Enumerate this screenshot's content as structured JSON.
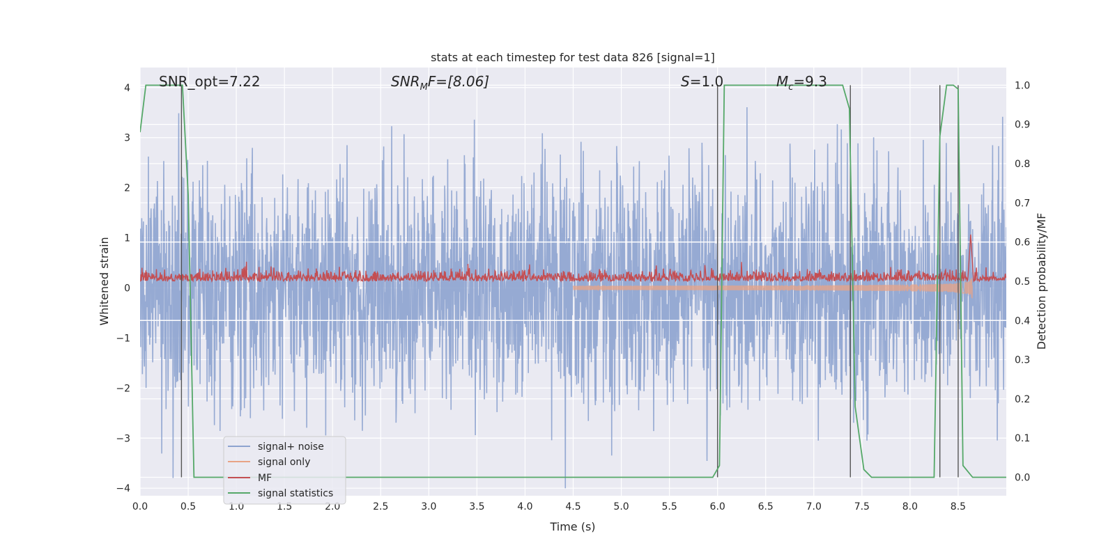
{
  "chart_data": {
    "type": "line",
    "title": "stats at each timestep for test data 826 [signal=1]",
    "xlabel": "Time (s)",
    "ylabel_left": "Whitened strain",
    "ylabel_right": "Detection probability/MF",
    "xlim": [
      0.0,
      9.0
    ],
    "ylim_left": [
      -4.15,
      4.4
    ],
    "ylim_right": [
      -0.047,
      1.045
    ],
    "xticks": [
      "0.0",
      "0.5",
      "1.0",
      "1.5",
      "2.0",
      "2.5",
      "3.0",
      "3.5",
      "4.0",
      "4.5",
      "5.0",
      "5.5",
      "6.0",
      "6.5",
      "7.0",
      "7.5",
      "8.0",
      "8.5"
    ],
    "yticks_left": [
      "−4",
      "−3",
      "−2",
      "−1",
      "0",
      "1",
      "2",
      "3",
      "4"
    ],
    "yticks_right": [
      "0.0",
      "0.1",
      "0.2",
      "0.3",
      "0.4",
      "0.5",
      "0.6",
      "0.7",
      "0.8",
      "0.9",
      "1.0"
    ],
    "grid": true,
    "legend_position": "lower-left",
    "annotations": {
      "snr_opt": "SNR_opt=7.22",
      "snr_mf_base": "SNR",
      "snr_mf_sub": "M",
      "snr_mf_rest": "F=[8.06]",
      "s_name": "S",
      "s_value": "=1.0",
      "mc_name": "M",
      "mc_sub": "c",
      "mc_value": "=9.3"
    },
    "series": [
      {
        "name": "signal+ noise",
        "color": "#8da3cf",
        "kind": "noise",
        "sigma": 1.0,
        "max_abs": 4.0
      },
      {
        "name": "signal only",
        "color": "#e8a385",
        "kind": "chirp",
        "t_merger": 8.65,
        "peak_amplitude": 0.9
      },
      {
        "name": "MF",
        "color": "#c44e52",
        "kind": "mf",
        "baseline": 0.5,
        "peak_time": 8.63,
        "peak_value": 0.62
      },
      {
        "name": "signal statistics",
        "color": "#55a868",
        "kind": "line",
        "x": [
          0.0,
          0.06,
          0.42,
          0.44,
          0.5,
          0.56,
          5.95,
          6.02,
          6.07,
          7.3,
          7.37,
          7.43,
          7.52,
          7.6,
          8.25,
          8.31,
          8.38,
          8.45,
          8.5,
          8.55,
          8.65,
          9.0
        ],
        "y": [
          0.88,
          1.0,
          1.0,
          1.0,
          0.72,
          0.0,
          0.0,
          0.03,
          1.0,
          1.0,
          0.94,
          0.18,
          0.02,
          0.0,
          0.0,
          0.87,
          1.0,
          1.0,
          0.99,
          0.03,
          0.0,
          0.0
        ]
      }
    ],
    "horizontal_lines_right": [
      0.4,
      0.6
    ],
    "vertical_markers": [
      0.43,
      6.0,
      7.38,
      8.31,
      8.5
    ]
  }
}
